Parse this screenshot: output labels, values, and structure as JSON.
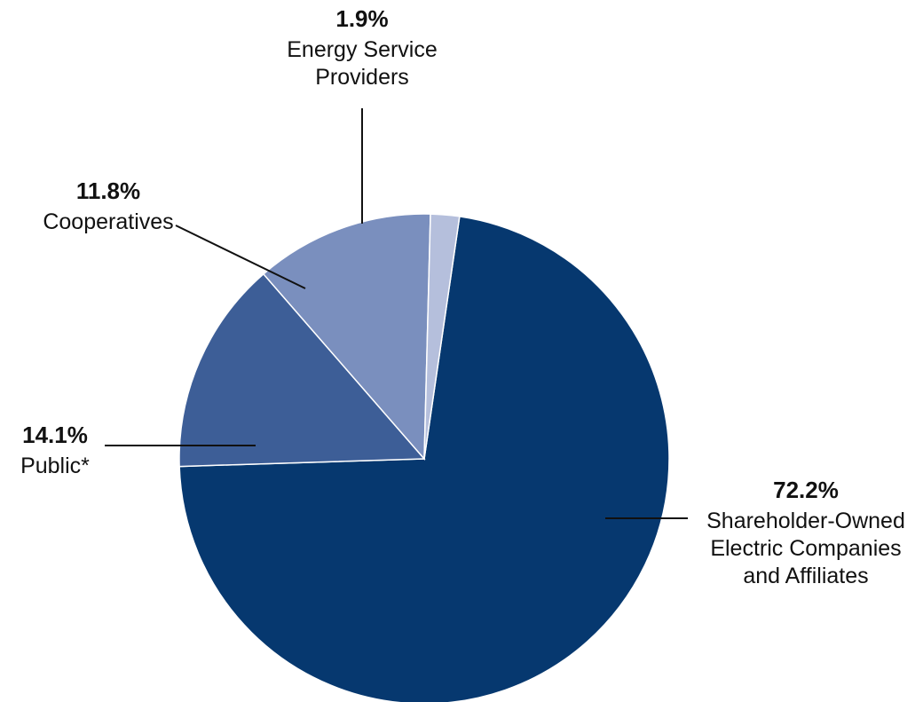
{
  "chart_data": {
    "type": "pie",
    "slices": [
      {
        "name_lines": [
          "Shareholder-Owned",
          "Electric Companies",
          "and Affiliates"
        ],
        "value": 72.2,
        "pct_label": "72.2%",
        "color": "#06386f"
      },
      {
        "name_lines": [
          "Public*"
        ],
        "value": 14.1,
        "pct_label": "14.1%",
        "color": "#3d5e97"
      },
      {
        "name_lines": [
          "Cooperatives"
        ],
        "value": 11.8,
        "pct_label": "11.8%",
        "color": "#7a8fbe"
      },
      {
        "name_lines": [
          "Energy Service",
          "Providers"
        ],
        "value": 1.9,
        "pct_label": "1.9%",
        "color": "#b5bfdc"
      }
    ]
  }
}
